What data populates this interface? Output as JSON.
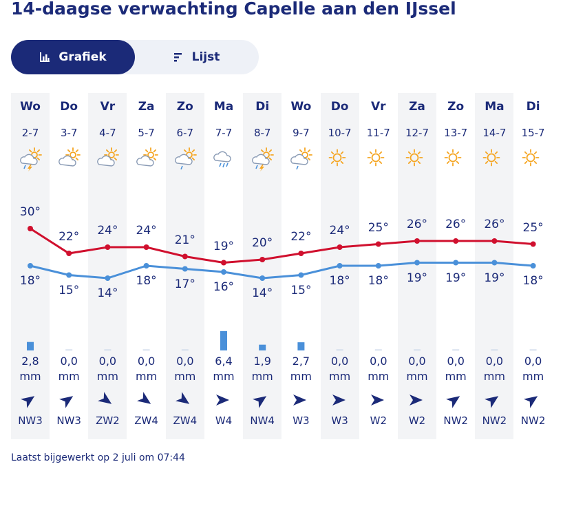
{
  "title": "14-daagse verwachting Capelle aan den IJssel",
  "toggle": {
    "chart_label": "Grafiek",
    "list_label": "Lijst"
  },
  "footer": "Laatst bijgewerkt op 2 juli om 07:44",
  "colors": {
    "max": "#d0102e",
    "min": "#4a90d9",
    "rain": "#4a90d9",
    "navy": "#1b2a78"
  },
  "days": [
    {
      "day": "Wo",
      "date": "2-7",
      "icon": "thunder-rain-sun-icon",
      "max": "30°",
      "min": "18°",
      "rain": "2,8",
      "unit": "mm",
      "wind": "NW3",
      "wind_dir": "NW"
    },
    {
      "day": "Do",
      "date": "3-7",
      "icon": "partly-cloudy-icon",
      "max": "22°",
      "min": "15°",
      "rain": "0,0",
      "unit": "mm",
      "wind": "NW3",
      "wind_dir": "NW"
    },
    {
      "day": "Vr",
      "date": "4-7",
      "icon": "partly-cloudy-icon",
      "max": "24°",
      "min": "14°",
      "rain": "0,0",
      "unit": "mm",
      "wind": "ZW2",
      "wind_dir": "ZW"
    },
    {
      "day": "Za",
      "date": "5-7",
      "icon": "partly-cloudy-icon",
      "max": "24°",
      "min": "18°",
      "rain": "0,0",
      "unit": "mm",
      "wind": "ZW4",
      "wind_dir": "ZW"
    },
    {
      "day": "Zo",
      "date": "6-7",
      "icon": "sun-shower-icon",
      "max": "21°",
      "min": "17°",
      "rain": "0,0",
      "unit": "mm",
      "wind": "ZW4",
      "wind_dir": "ZW"
    },
    {
      "day": "Ma",
      "date": "7-7",
      "icon": "rain-cloud-icon",
      "max": "19°",
      "min": "16°",
      "rain": "6,4",
      "unit": "mm",
      "wind": "W4",
      "wind_dir": "W"
    },
    {
      "day": "Di",
      "date": "8-7",
      "icon": "thunder-rain-sun-icon",
      "max": "20°",
      "min": "14°",
      "rain": "1,9",
      "unit": "mm",
      "wind": "NW4",
      "wind_dir": "NW"
    },
    {
      "day": "Wo",
      "date": "9-7",
      "icon": "sun-shower-icon",
      "max": "22°",
      "min": "15°",
      "rain": "2,7",
      "unit": "mm",
      "wind": "W3",
      "wind_dir": "W"
    },
    {
      "day": "Do",
      "date": "10-7",
      "icon": "sun-icon",
      "max": "24°",
      "min": "18°",
      "rain": "0,0",
      "unit": "mm",
      "wind": "W3",
      "wind_dir": "W"
    },
    {
      "day": "Vr",
      "date": "11-7",
      "icon": "sun-icon",
      "max": "25°",
      "min": "18°",
      "rain": "0,0",
      "unit": "mm",
      "wind": "W2",
      "wind_dir": "W"
    },
    {
      "day": "Za",
      "date": "12-7",
      "icon": "sun-icon",
      "max": "26°",
      "min": "19°",
      "rain": "0,0",
      "unit": "mm",
      "wind": "W2",
      "wind_dir": "W"
    },
    {
      "day": "Zo",
      "date": "13-7",
      "icon": "sun-icon",
      "max": "26°",
      "min": "19°",
      "rain": "0,0",
      "unit": "mm",
      "wind": "NW2",
      "wind_dir": "NW"
    },
    {
      "day": "Ma",
      "date": "14-7",
      "icon": "sun-icon",
      "max": "26°",
      "min": "19°",
      "rain": "0,0",
      "unit": "mm",
      "wind": "NW2",
      "wind_dir": "NW"
    },
    {
      "day": "Di",
      "date": "15-7",
      "icon": "sun-icon",
      "max": "25°",
      "min": "18°",
      "rain": "0,0",
      "unit": "mm",
      "wind": "NW2",
      "wind_dir": "NW"
    }
  ],
  "chart_data": {
    "type": "line",
    "categories": [
      "2-7",
      "3-7",
      "4-7",
      "5-7",
      "6-7",
      "7-7",
      "8-7",
      "9-7",
      "10-7",
      "11-7",
      "12-7",
      "13-7",
      "14-7",
      "15-7"
    ],
    "series": [
      {
        "values": [
          30,
          22,
          24,
          24,
          21,
          19,
          20,
          22,
          24,
          25,
          26,
          26,
          26,
          25
        ]
      },
      {
        "values": [
          18,
          15,
          14,
          18,
          17,
          16,
          14,
          15,
          18,
          18,
          19,
          19,
          19,
          18
        ]
      }
    ],
    "rain_mm": [
      2.8,
      0.0,
      0.0,
      0.0,
      0.0,
      6.4,
      1.9,
      2.7,
      0.0,
      0.0,
      0.0,
      0.0,
      0.0,
      0.0
    ]
  }
}
